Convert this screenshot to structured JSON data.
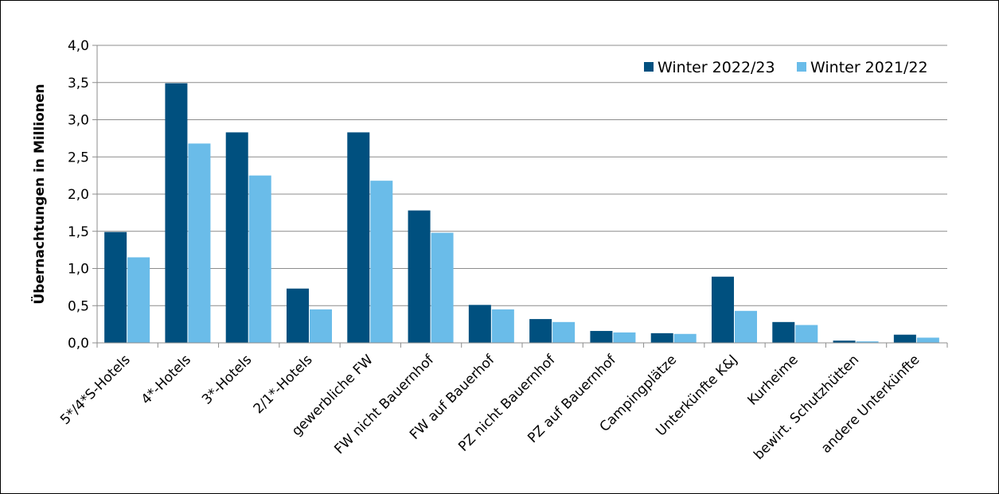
{
  "chart_data": {
    "type": "bar",
    "title": "",
    "xlabel": "",
    "ylabel": "Übernachtungen in Millionen",
    "ylim": [
      0,
      4.0
    ],
    "yticks": [
      "0,0",
      "0,5",
      "1,0",
      "1,5",
      "2,0",
      "2,5",
      "3,0",
      "3,5",
      "4,0"
    ],
    "grid": true,
    "legend_position": "top-right",
    "categories": [
      "5*/4*S-Hotels",
      "4*-Hotels",
      "3*-Hotels",
      "2/1*-Hotels",
      "gewerbliche FW",
      "FW nicht Bauernhof",
      "FW auf Bauerhof",
      "PZ nicht Bauernhof",
      "PZ auf Bauernhof",
      "Campingplätze",
      "Unterkünfte K&J",
      "Kurheime",
      "bewirt. Schutzhütten",
      "andere Unterkünfte"
    ],
    "series": [
      {
        "name": "Winter 2022/23",
        "color": "#00507f",
        "values": [
          1.49,
          3.49,
          2.83,
          0.73,
          2.83,
          1.78,
          0.51,
          0.32,
          0.16,
          0.13,
          0.89,
          0.28,
          0.03,
          0.11
        ]
      },
      {
        "name": "Winter 2021/22",
        "color": "#6abce9",
        "values": [
          1.15,
          2.68,
          2.25,
          0.45,
          2.18,
          1.48,
          0.45,
          0.28,
          0.14,
          0.12,
          0.43,
          0.24,
          0.02,
          0.07
        ]
      }
    ]
  }
}
